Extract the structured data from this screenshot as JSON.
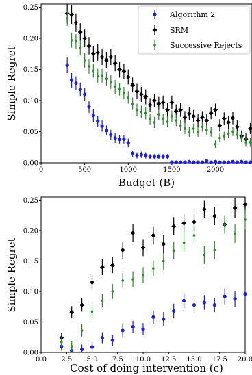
{
  "chart_data": [
    {
      "type": "scatter",
      "xlabel": "Budget (B)",
      "ylabel": "Simple Regret",
      "xlim": [
        0,
        2420
      ],
      "ylim": [
        0,
        0.255
      ],
      "xticks": [
        0,
        500,
        1000,
        1500,
        2000
      ],
      "xtick_labels": [
        "0",
        "500",
        "1000",
        "1500",
        "2000"
      ],
      "yticks": [
        0,
        0.05,
        0.1,
        0.15,
        0.2,
        0.25
      ],
      "ytick_labels": [
        "0.00",
        "0.05",
        "0.10",
        "0.15",
        "0.20",
        "0.25"
      ],
      "legend": "top-right",
      "series": [
        {
          "name": "Algorithm 2",
          "color": "#1f1fd6",
          "x": [
            300,
            350,
            400,
            450,
            500,
            550,
            600,
            650,
            700,
            750,
            800,
            850,
            900,
            950,
            1000,
            1050,
            1100,
            1150,
            1200,
            1250,
            1300,
            1350,
            1400,
            1450,
            1500,
            1550,
            1600,
            1650,
            1700,
            1750,
            1800,
            1850,
            1900,
            1950,
            2000,
            2050,
            2100,
            2150,
            2200,
            2250,
            2300,
            2350,
            2400
          ],
          "y": [
            0.157,
            0.133,
            0.128,
            0.118,
            0.11,
            0.09,
            0.076,
            0.067,
            0.059,
            0.052,
            0.045,
            0.04,
            0.038,
            0.038,
            0.032,
            0.015,
            0.012,
            0.013,
            0.012,
            0.01,
            0.01,
            0.01,
            0.01,
            0.01,
            0.001,
            0.001,
            0.001,
            0.001,
            0.002,
            0.001,
            0.001,
            0.001,
            0.003,
            0.001,
            0.002,
            0.001,
            0.001,
            0.001,
            0.002,
            0.001,
            0.002,
            0.001,
            0.001
          ],
          "err": [
            0.012,
            0.012,
            0.011,
            0.011,
            0.011,
            0.01,
            0.01,
            0.009,
            0.009,
            0.008,
            0.008,
            0.008,
            0.007,
            0.007,
            0.007,
            0.005,
            0.005,
            0.005,
            0.005,
            0.004,
            0.004,
            0.004,
            0.004,
            0.004,
            0.002,
            0.002,
            0.002,
            0.002,
            0.002,
            0.002,
            0.002,
            0.002,
            0.002,
            0.002,
            0.002,
            0.002,
            0.002,
            0.002,
            0.002,
            0.002,
            0.002,
            0.002,
            0.002
          ]
        },
        {
          "name": "SRM",
          "color": "#000000",
          "x": [
            300,
            350,
            400,
            450,
            500,
            550,
            600,
            650,
            700,
            750,
            800,
            850,
            900,
            950,
            1000,
            1050,
            1100,
            1150,
            1200,
            1250,
            1300,
            1350,
            1400,
            1450,
            1500,
            1550,
            1600,
            1650,
            1700,
            1750,
            1800,
            1850,
            1900,
            1950,
            2000,
            2050,
            2100,
            2150,
            2200,
            2250,
            2300,
            2350,
            2400
          ],
          "y": [
            0.24,
            0.238,
            0.225,
            0.21,
            0.2,
            0.188,
            0.175,
            0.177,
            0.17,
            0.165,
            0.17,
            0.16,
            0.15,
            0.147,
            0.138,
            0.125,
            0.115,
            0.11,
            0.106,
            0.093,
            0.1,
            0.095,
            0.097,
            0.085,
            0.097,
            0.083,
            0.085,
            0.073,
            0.079,
            0.075,
            0.068,
            0.073,
            0.068,
            0.08,
            0.085,
            0.06,
            0.071,
            0.065,
            0.072,
            0.058,
            0.043,
            0.038,
            0.055
          ],
          "err": [
            0.015,
            0.015,
            0.015,
            0.014,
            0.014,
            0.014,
            0.013,
            0.013,
            0.013,
            0.013,
            0.013,
            0.013,
            0.013,
            0.012,
            0.012,
            0.012,
            0.012,
            0.012,
            0.012,
            0.011,
            0.011,
            0.011,
            0.011,
            0.011,
            0.011,
            0.011,
            0.011,
            0.01,
            0.01,
            0.01,
            0.01,
            0.01,
            0.01,
            0.01,
            0.01,
            0.01,
            0.01,
            0.01,
            0.01,
            0.01,
            0.009,
            0.009,
            0.009
          ]
        },
        {
          "name": "Successive Rejects",
          "color": "#2e8b2e",
          "x": [
            300,
            350,
            400,
            450,
            500,
            550,
            600,
            650,
            700,
            750,
            800,
            850,
            900,
            950,
            1000,
            1050,
            1100,
            1150,
            1200,
            1250,
            1300,
            1350,
            1400,
            1450,
            1500,
            1550,
            1600,
            1650,
            1700,
            1750,
            1800,
            1850,
            1900,
            1950,
            2000,
            2050,
            2100,
            2150,
            2200,
            2250,
            2300,
            2350,
            2400
          ],
          "y": [
            0.232,
            0.197,
            0.195,
            0.185,
            0.165,
            0.155,
            0.148,
            0.14,
            0.14,
            0.135,
            0.13,
            0.122,
            0.118,
            0.112,
            0.105,
            0.095,
            0.085,
            0.082,
            0.08,
            0.07,
            0.065,
            0.078,
            0.07,
            0.066,
            0.075,
            0.068,
            0.06,
            0.055,
            0.05,
            0.055,
            0.05,
            0.058,
            0.053,
            0.05,
            0.03,
            0.04,
            0.043,
            0.047,
            0.05,
            0.045,
            0.04,
            0.033,
            0.033
          ],
          "err": [
            0.012,
            0.012,
            0.012,
            0.012,
            0.012,
            0.012,
            0.011,
            0.011,
            0.011,
            0.011,
            0.011,
            0.011,
            0.01,
            0.01,
            0.01,
            0.01,
            0.01,
            0.01,
            0.01,
            0.009,
            0.009,
            0.009,
            0.009,
            0.009,
            0.009,
            0.009,
            0.009,
            0.009,
            0.008,
            0.008,
            0.008,
            0.008,
            0.008,
            0.008,
            0.006,
            0.007,
            0.007,
            0.007,
            0.007,
            0.007,
            0.007,
            0.007,
            0.007
          ]
        }
      ]
    },
    {
      "type": "scatter",
      "xlabel": "Cost of doing intervention (c)",
      "ylabel": "Simple Regret",
      "xlim": [
        0,
        20
      ],
      "ylim": [
        0,
        0.255
      ],
      "xticks": [
        0,
        2.5,
        5,
        7.5,
        10,
        12.5,
        15,
        17.5,
        20
      ],
      "xtick_labels": [
        "0.0",
        "2.5",
        "5.0",
        "7.5",
        "10.0",
        "12.5",
        "15.0",
        "17.5",
        "20.0"
      ],
      "yticks": [
        0,
        0.05,
        0.1,
        0.15,
        0.2,
        0.25
      ],
      "ytick_labels": [
        "0.00",
        "0.05",
        "0.10",
        "0.15",
        "0.20",
        "0.25"
      ],
      "series": [
        {
          "name": "Algorithm 2",
          "color": "#1f1fd6",
          "x": [
            2,
            3,
            4,
            5,
            6,
            7,
            8,
            9,
            10,
            11,
            12,
            13,
            14,
            15,
            16,
            17,
            18,
            19,
            20
          ],
          "y": [
            0.01,
            0.003,
            0.005,
            0.009,
            0.024,
            0.02,
            0.036,
            0.042,
            0.038,
            0.058,
            0.055,
            0.068,
            0.085,
            0.078,
            0.082,
            0.078,
            0.092,
            0.088,
            0.096
          ],
          "err": [
            0.007,
            0.007,
            0.008,
            0.008,
            0.009,
            0.009,
            0.01,
            0.01,
            0.01,
            0.011,
            0.011,
            0.012,
            0.012,
            0.012,
            0.012,
            0.012,
            0.013,
            0.013,
            0.013
          ]
        },
        {
          "name": "SRM",
          "color": "#000000",
          "x": [
            2,
            3,
            4,
            5,
            6,
            7,
            8,
            9,
            10,
            11,
            12,
            13,
            14,
            15,
            16,
            17,
            18,
            19,
            20
          ],
          "y": [
            0.024,
            0.066,
            0.078,
            0.115,
            0.14,
            0.143,
            0.168,
            0.196,
            0.172,
            0.192,
            0.178,
            0.207,
            0.212,
            0.214,
            0.235,
            0.224,
            0.21,
            0.237,
            0.243
          ],
          "err": [
            0.008,
            0.01,
            0.011,
            0.012,
            0.013,
            0.013,
            0.014,
            0.014,
            0.014,
            0.015,
            0.015,
            0.015,
            0.015,
            0.015,
            0.015,
            0.015,
            0.015,
            0.016,
            0.016
          ]
        },
        {
          "name": "Successive Rejects",
          "color": "#2e8b2e",
          "x": [
            2,
            3,
            4,
            5,
            6,
            7,
            8,
            9,
            10,
            11,
            12,
            13,
            14,
            15,
            16,
            17,
            18,
            19,
            20
          ],
          "y": [
            0.017,
            0.01,
            0.036,
            0.067,
            0.085,
            0.1,
            0.118,
            0.12,
            0.127,
            0.138,
            0.15,
            0.167,
            0.18,
            0.192,
            0.16,
            0.168,
            0.21,
            0.195,
            0.218
          ],
          "err": [
            0.008,
            0.008,
            0.01,
            0.011,
            0.011,
            0.012,
            0.012,
            0.013,
            0.013,
            0.013,
            0.014,
            0.014,
            0.014,
            0.015,
            0.015,
            0.015,
            0.015,
            0.015,
            0.016
          ]
        }
      ]
    }
  ]
}
